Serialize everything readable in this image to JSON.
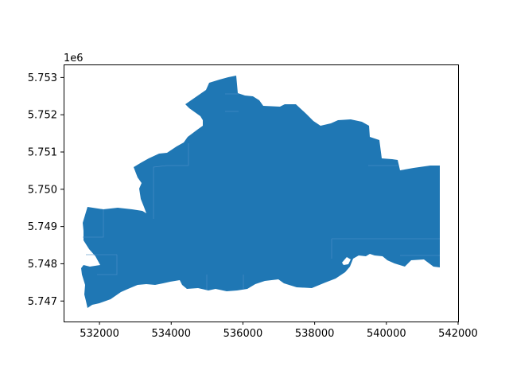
{
  "figure": {
    "background": "#ffffff",
    "fill_color": "#1f77b4",
    "internal_line_color": "#4d8fc8"
  },
  "chart_data": {
    "type": "map",
    "title": "",
    "xlabel": "",
    "ylabel": "",
    "xlim": [
      531000,
      542000
    ],
    "ylim": [
      5746450,
      5753350
    ],
    "x_ticks": [
      532000,
      534000,
      536000,
      538000,
      540000,
      542000
    ],
    "x_tick_labels": [
      "532000",
      "534000",
      "536000",
      "538000",
      "540000",
      "542000"
    ],
    "y_ticks": [
      5747000,
      5748000,
      5749000,
      5750000,
      5751000,
      5752000,
      5753000
    ],
    "y_tick_labels": [
      "5.747",
      "5.748",
      "5.749",
      "5.750",
      "5.751",
      "5.752",
      "5.753"
    ],
    "y_offset_label": "1e6",
    "grid": false,
    "legend": false
  }
}
